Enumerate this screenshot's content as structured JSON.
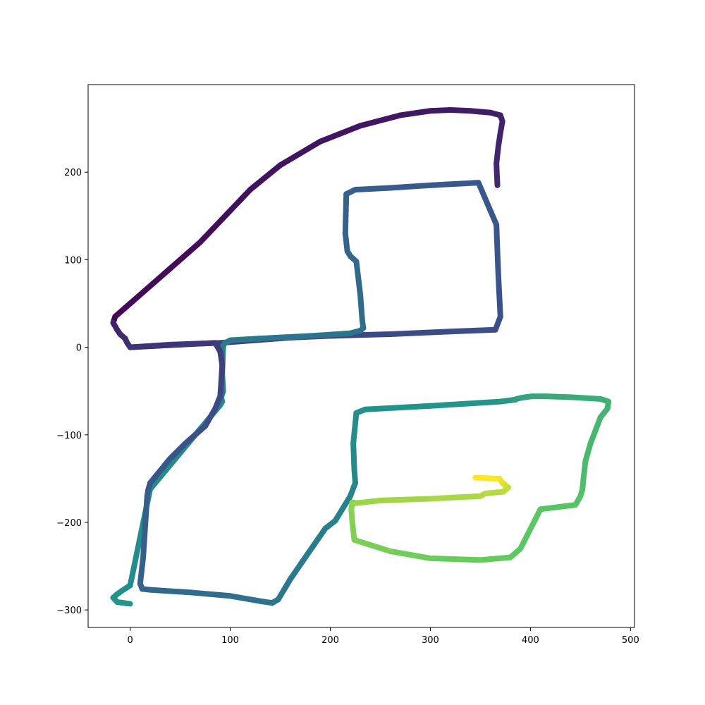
{
  "chart_data": {
    "type": "line",
    "title": "",
    "xlabel": "",
    "ylabel": "",
    "xlim": [
      -42,
      504
    ],
    "ylim": [
      -320,
      300
    ],
    "xticks": [
      0,
      100,
      200,
      300,
      400,
      500
    ],
    "yticks": [
      -300,
      -200,
      -100,
      0,
      100,
      200
    ],
    "xtick_labels": [
      "0",
      "100",
      "200",
      "300",
      "400",
      "500"
    ],
    "ytick_labels": [
      "−300",
      "−200",
      "−100",
      "0",
      "100",
      "200"
    ],
    "grid": false,
    "colormap": "viridis",
    "color_by": "point order (start = dark purple, end = yellow)",
    "colormap_stops": [
      "#440154",
      "#3b528b",
      "#21918c",
      "#5ec962",
      "#fde725"
    ],
    "series": [
      {
        "name": "trajectory",
        "x": [
          0,
          40,
          90,
          125,
          160,
          200,
          260,
          320,
          365,
          370,
          368,
          366,
          348,
          300,
          260,
          225,
          216,
          215,
          217,
          220,
          226,
          230,
          232,
          233,
          230,
          220,
          180,
          130,
          100,
          95,
          93,
          92,
          93,
          91,
          92,
          90,
          60,
          20,
          0,
          -8,
          -13,
          -17,
          -13,
          0
        ],
        "y": [
          0,
          3,
          5,
          8,
          11,
          13,
          15,
          18,
          20,
          35,
          80,
          140,
          188,
          185,
          182,
          180,
          175,
          130,
          110,
          104,
          98,
          60,
          30,
          22,
          19,
          16,
          13,
          10,
          8,
          5,
          2,
          -30,
          -50,
          -57,
          -62,
          -66,
          -107,
          -162,
          -272,
          -278,
          -282,
          -286,
          -291,
          -293
        ]
      }
    ],
    "segments": [
      {
        "name": "outer-arc",
        "x": [
          -17,
          -15,
          -10,
          -5,
          0,
          15,
          40,
          70,
          95,
          120,
          150,
          190,
          230,
          270,
          300,
          320,
          340,
          360,
          370,
          372,
          370,
          368,
          366,
          367
        ],
        "y": [
          28,
          35,
          40,
          45,
          50,
          65,
          90,
          120,
          150,
          180,
          208,
          235,
          253,
          265,
          270,
          271,
          270,
          268,
          265,
          258,
          245,
          230,
          210,
          185
        ]
      },
      {
        "name": "left-bottom-and-lower-loop",
        "x": [
          -17,
          -13,
          -10,
          -5,
          -3,
          0,
          50,
          85,
          90,
          92,
          91,
          90,
          85,
          75,
          55,
          40,
          20,
          18,
          17,
          13,
          10,
          12,
          20,
          60,
          100,
          130,
          142,
          148,
          160,
          175,
          195,
          205,
          220,
          225,
          224,
          223,
          226,
          235,
          300,
          370,
          384,
          385,
          386,
          390,
          395,
          402,
          415,
          440,
          470,
          478,
          477,
          470,
          460,
          455,
          453,
          452,
          450,
          445,
          410,
          390,
          380,
          350,
          300,
          260,
          224,
          222,
          221,
          222,
          226,
          250,
          300,
          350,
          355,
          373,
          378,
          375,
          374,
          372,
          371,
          370,
          369,
          368,
          365,
          345
        ],
        "y": [
          28,
          20,
          15,
          10,
          5,
          0,
          3,
          5,
          -5,
          -20,
          -40,
          -56,
          -70,
          -90,
          -110,
          -127,
          -155,
          -163,
          -170,
          -240,
          -270,
          -276,
          -277,
          -280,
          -284,
          -290,
          -292,
          -288,
          -265,
          -240,
          -207,
          -198,
          -170,
          -155,
          -140,
          -110,
          -75,
          -71,
          -67,
          -62,
          -60,
          -60,
          -59,
          -58,
          -57,
          -56,
          -56,
          -57,
          -59,
          -62,
          -70,
          -80,
          -110,
          -130,
          -150,
          -162,
          -170,
          -180,
          -185,
          -230,
          -240,
          -243,
          -241,
          -233,
          -220,
          -200,
          -185,
          -177,
          -178,
          -175,
          -173,
          -170,
          -167,
          -165,
          -160,
          -158,
          -156,
          -155,
          -153,
          -152,
          -150,
          -150,
          -150,
          -149
        ]
      }
    ]
  }
}
